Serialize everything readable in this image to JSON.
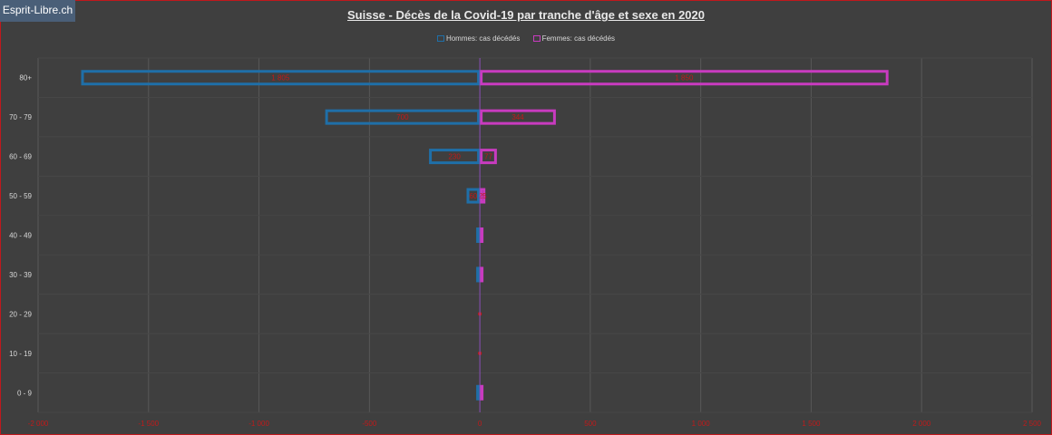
{
  "badge": "Esprit-Libre.ch",
  "colors": {
    "men": "#1f6fa8",
    "women": "#c83bbf",
    "axis_labels": "#c01a1a",
    "grid": "#585858",
    "category_text": "#d8d8d8"
  },
  "chart_data": {
    "type": "bar",
    "orientation": "horizontal",
    "title": "Suisse - Décès de la Covid-19 par tranche d'âge et sexe en 2020",
    "legend_position": "top",
    "categories": [
      "80+",
      "70 - 79",
      "60 - 69",
      "50 - 59",
      "40 - 49",
      "30 - 39",
      "20 - 29",
      "10 - 19",
      "0 - 9"
    ],
    "series": [
      {
        "name": "Hommes: cas décédés",
        "values": [
          -1805,
          -700,
          -230,
          -60,
          -10,
          -10,
          0,
          0,
          -10
        ]
      },
      {
        "name": "Femmes: cas décédés",
        "values": [
          1850,
          344,
          77,
          25,
          10,
          10,
          0,
          0,
          10
        ]
      }
    ],
    "data_labels": {
      "80+": [
        "1 805",
        "1 850"
      ],
      "70 - 79": [
        "700",
        "344"
      ],
      "60 - 69": [
        "230",
        "77"
      ],
      "50 - 59": [
        "60",
        "25"
      ]
    },
    "xlim": [
      -2000,
      2500
    ],
    "xticks": [
      -2000,
      -1500,
      -1000,
      -500,
      0,
      500,
      1000,
      1500,
      2000,
      2500
    ],
    "xtick_labels": [
      "-2 000",
      "-1 500",
      "-1 000",
      "-500",
      "0",
      "500",
      "1 000",
      "1 500",
      "2 000",
      "2 500"
    ],
    "grid": true
  }
}
